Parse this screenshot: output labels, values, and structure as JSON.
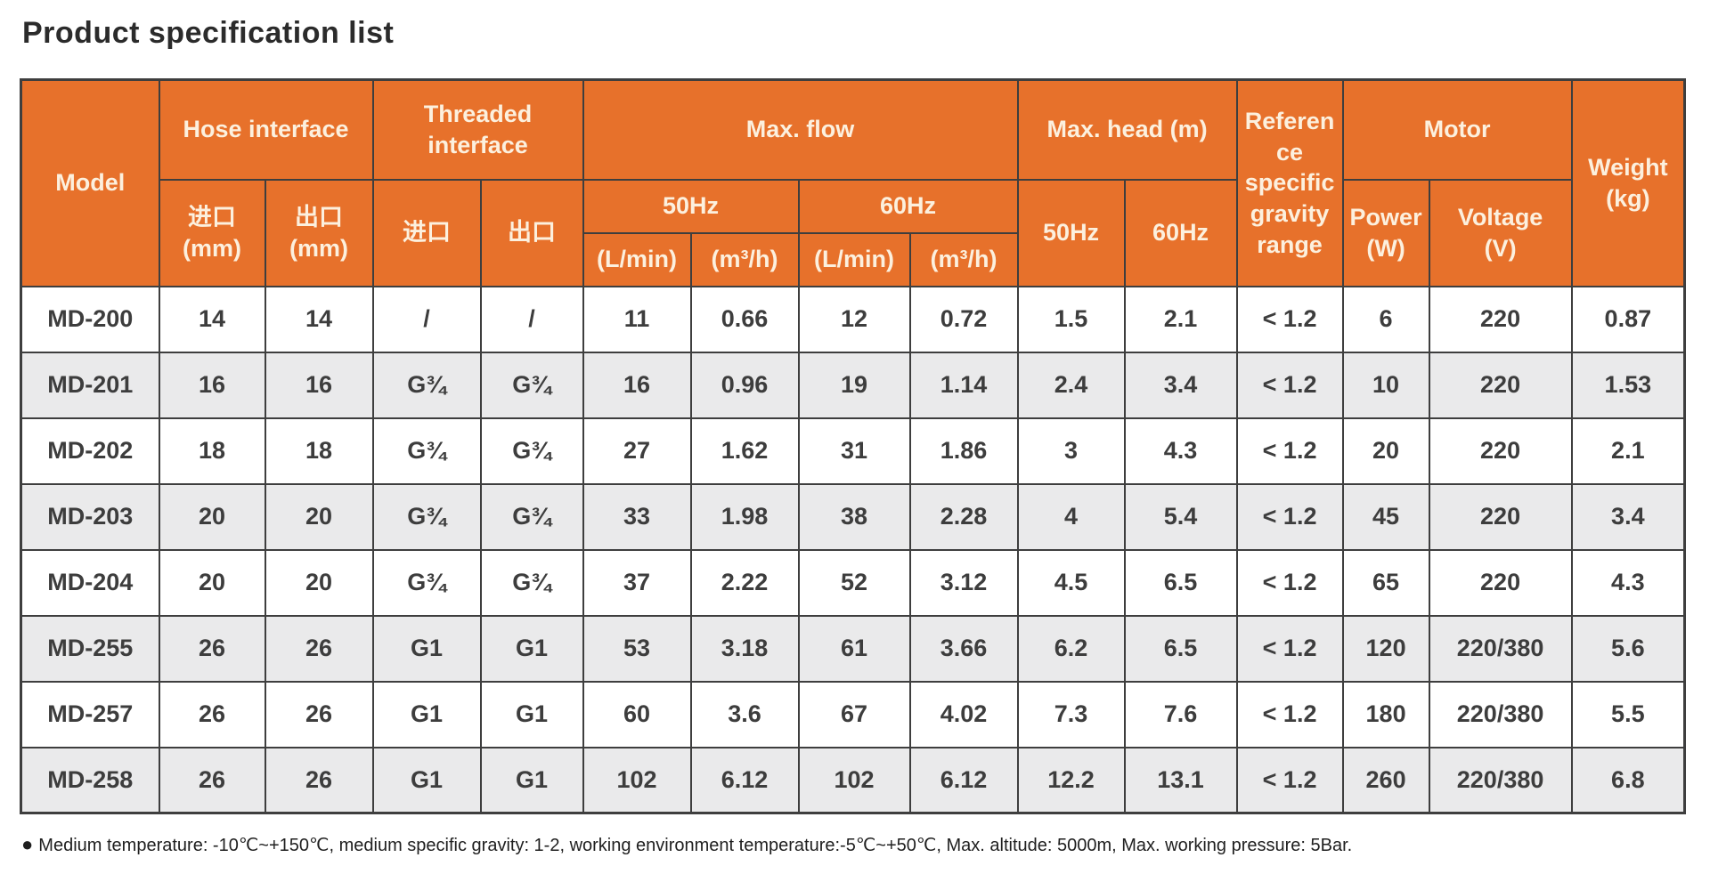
{
  "page": {
    "title": "Product specification list"
  },
  "colors": {
    "header_bg": "#e7712b",
    "header_text": "#fcf0de",
    "row_bg": "#ffffff",
    "row_alt_bg": "#eaeaeb",
    "body_text": "#3d3d3d",
    "border": "#3e3e3e"
  },
  "table": {
    "header": {
      "model": "Model",
      "hose_interface": "Hose interface",
      "threaded_interface": "Threaded interface",
      "max_flow": "Max. flow",
      "max_head": "Max. head (m)",
      "gravity": "Reference specific gravity range",
      "motor": "Motor",
      "weight_l1": "Weight",
      "weight_l2": "(kg)",
      "hose_in_l1": "进口",
      "hose_in_l2": "(mm)",
      "hose_out_l1": "出口",
      "hose_out_l2": "(mm)",
      "thread_in": "进口",
      "thread_out": "出口",
      "flow_50": "50Hz",
      "flow_60": "60Hz",
      "head_50": "50Hz",
      "head_60": "60Hz",
      "lmin_50": "(L/min)",
      "m3h_50": "(m³/h)",
      "lmin_60": "(L/min)",
      "m3h_60": "(m³/h)",
      "power_l1": "Power",
      "power_l2": "(W)",
      "voltage_l1": "Voltage",
      "voltage_l2": "(V)"
    },
    "row_keys": [
      "model",
      "hose_inlet_mm",
      "hose_outlet_mm",
      "thread_inlet",
      "thread_outlet",
      "flow50_lmin",
      "flow50_m3h",
      "flow60_lmin",
      "flow60_m3h",
      "head50_m",
      "head60_m",
      "gravity",
      "power_w",
      "voltage_v",
      "weight_kg"
    ],
    "rows": [
      {
        "model": "MD-200",
        "hose_inlet_mm": "14",
        "hose_outlet_mm": "14",
        "thread_inlet": "/",
        "thread_outlet": "/",
        "flow50_lmin": "11",
        "flow50_m3h": "0.66",
        "flow60_lmin": "12",
        "flow60_m3h": "0.72",
        "head50_m": "1.5",
        "head60_m": "2.1",
        "gravity": "< 1.2",
        "power_w": "6",
        "voltage_v": "220",
        "weight_kg": "0.87"
      },
      {
        "model": "MD-201",
        "hose_inlet_mm": "16",
        "hose_outlet_mm": "16",
        "thread_inlet": "G¾",
        "thread_outlet": "G¾",
        "flow50_lmin": "16",
        "flow50_m3h": "0.96",
        "flow60_lmin": "19",
        "flow60_m3h": "1.14",
        "head50_m": "2.4",
        "head60_m": "3.4",
        "gravity": "< 1.2",
        "power_w": "10",
        "voltage_v": "220",
        "weight_kg": "1.53"
      },
      {
        "model": "MD-202",
        "hose_inlet_mm": "18",
        "hose_outlet_mm": "18",
        "thread_inlet": "G¾",
        "thread_outlet": "G¾",
        "flow50_lmin": "27",
        "flow50_m3h": "1.62",
        "flow60_lmin": "31",
        "flow60_m3h": "1.86",
        "head50_m": "3",
        "head60_m": "4.3",
        "gravity": "< 1.2",
        "power_w": "20",
        "voltage_v": "220",
        "weight_kg": "2.1"
      },
      {
        "model": "MD-203",
        "hose_inlet_mm": "20",
        "hose_outlet_mm": "20",
        "thread_inlet": "G¾",
        "thread_outlet": "G¾",
        "flow50_lmin": "33",
        "flow50_m3h": "1.98",
        "flow60_lmin": "38",
        "flow60_m3h": "2.28",
        "head50_m": "4",
        "head60_m": "5.4",
        "gravity": "< 1.2",
        "power_w": "45",
        "voltage_v": "220",
        "weight_kg": "3.4"
      },
      {
        "model": "MD-204",
        "hose_inlet_mm": "20",
        "hose_outlet_mm": "20",
        "thread_inlet": "G¾",
        "thread_outlet": "G¾",
        "flow50_lmin": "37",
        "flow50_m3h": "2.22",
        "flow60_lmin": "52",
        "flow60_m3h": "3.12",
        "head50_m": "4.5",
        "head60_m": "6.5",
        "gravity": "< 1.2",
        "power_w": "65",
        "voltage_v": "220",
        "weight_kg": "4.3"
      },
      {
        "model": "MD-255",
        "hose_inlet_mm": "26",
        "hose_outlet_mm": "26",
        "thread_inlet": "G1",
        "thread_outlet": "G1",
        "flow50_lmin": "53",
        "flow50_m3h": "3.18",
        "flow60_lmin": "61",
        "flow60_m3h": "3.66",
        "head50_m": "6.2",
        "head60_m": "6.5",
        "gravity": "< 1.2",
        "power_w": "120",
        "voltage_v": "220/380",
        "weight_kg": "5.6"
      },
      {
        "model": "MD-257",
        "hose_inlet_mm": "26",
        "hose_outlet_mm": "26",
        "thread_inlet": "G1",
        "thread_outlet": "G1",
        "flow50_lmin": "60",
        "flow50_m3h": "3.6",
        "flow60_lmin": "67",
        "flow60_m3h": "4.02",
        "head50_m": "7.3",
        "head60_m": "7.6",
        "gravity": "< 1.2",
        "power_w": "180",
        "voltage_v": "220/380",
        "weight_kg": "5.5"
      },
      {
        "model": "MD-258",
        "hose_inlet_mm": "26",
        "hose_outlet_mm": "26",
        "thread_inlet": "G1",
        "thread_outlet": "G1",
        "flow50_lmin": "102",
        "flow50_m3h": "6.12",
        "flow60_lmin": "102",
        "flow60_m3h": "6.12",
        "head50_m": "12.2",
        "head60_m": "13.1",
        "gravity": "< 1.2",
        "power_w": "260",
        "voltage_v": "220/380",
        "weight_kg": "6.8"
      }
    ]
  },
  "footnote": {
    "bullet": "●",
    "text": "Medium temperature: -10℃~+150℃, medium specific gravity: 1-2, working environment temperature:-5℃~+50℃, Max. altitude: 5000m, Max. working pressure: 5Bar."
  }
}
